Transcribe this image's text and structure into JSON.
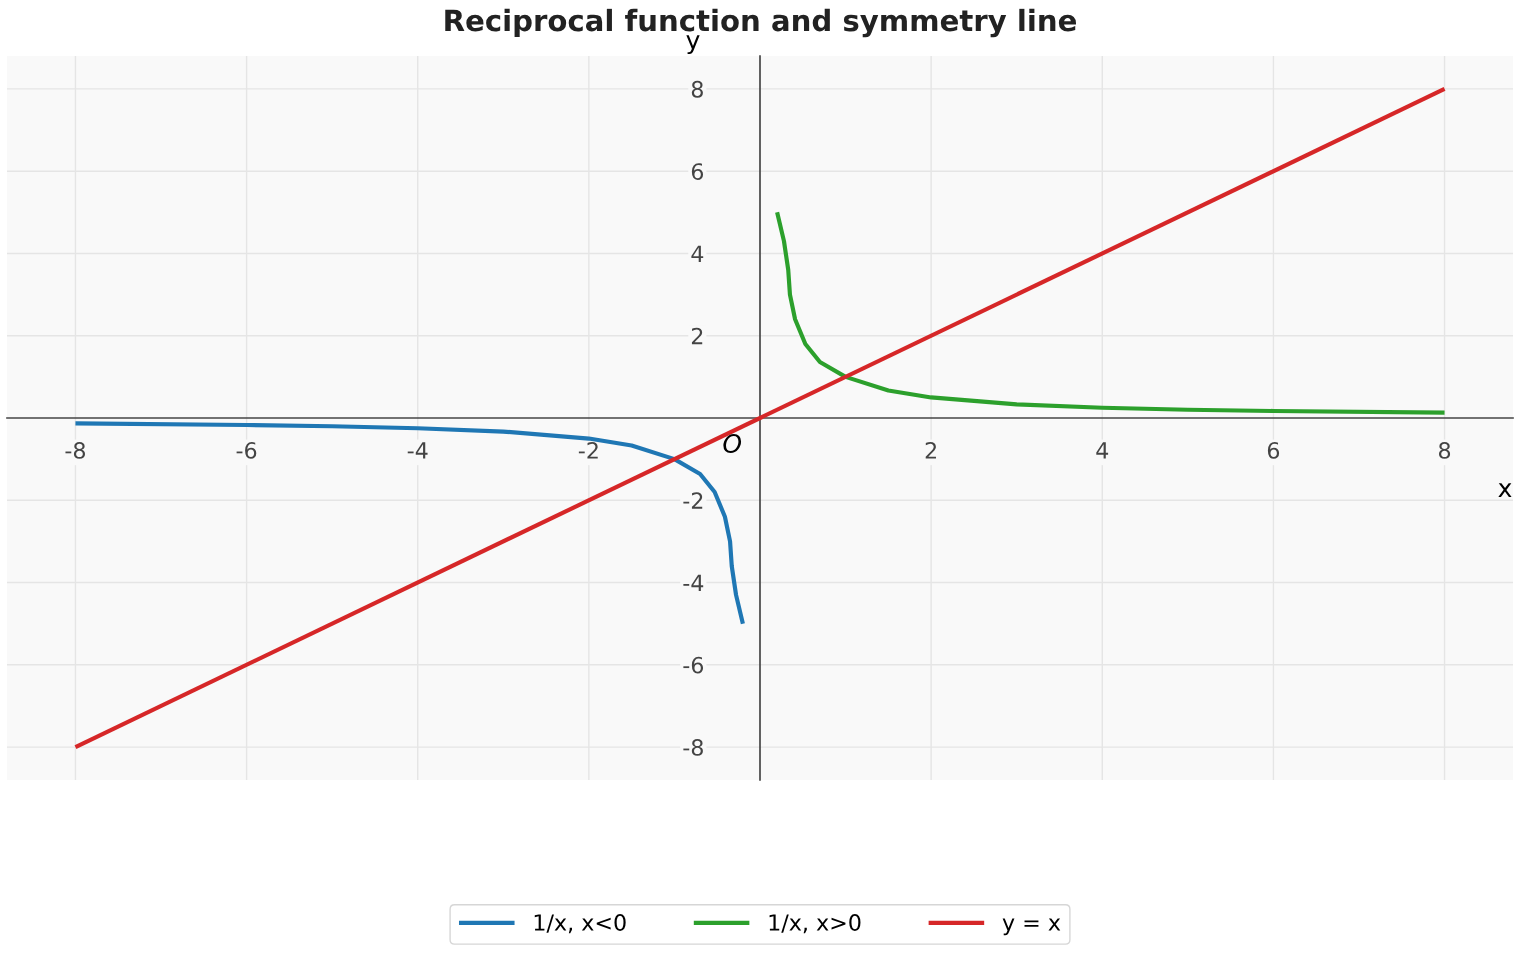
{
  "chart_data": {
    "type": "line",
    "title": "Reciprocal function and symmetry line",
    "xlabel": "x",
    "ylabel": "y",
    "series": [
      {
        "name": "1/x, x<0",
        "color": "#1f77b4",
        "x": [
          -8,
          -6,
          -5,
          -4,
          -3,
          -2,
          -1.5,
          -1,
          -0.7,
          -0.53,
          -0.41,
          -0.35,
          -0.33,
          -0.28,
          -0.2
        ],
        "values": [
          -0.13,
          -0.17,
          -0.2,
          -0.25,
          -0.33,
          -0.5,
          -0.67,
          -1,
          -1.36,
          -1.8,
          -2.4,
          -3.0,
          -3.6,
          -4.3,
          -5
        ]
      },
      {
        "name": "1/x, x>0",
        "color": "#2ca02c",
        "x": [
          0.2,
          0.28,
          0.33,
          0.35,
          0.41,
          0.53,
          0.7,
          1,
          1.5,
          2,
          3,
          4,
          5,
          6,
          8
        ],
        "values": [
          5,
          4.3,
          3.6,
          3.0,
          2.4,
          1.8,
          1.36,
          1,
          0.67,
          0.5,
          0.33,
          0.25,
          0.2,
          0.17,
          0.13
        ]
      },
      {
        "name": "y = x",
        "color": "#d62728",
        "x": [
          -8,
          8
        ],
        "values": [
          -8,
          8
        ]
      }
    ],
    "xlim": [
      -8.8,
      8.8
    ],
    "ylim": [
      -8.8,
      8.8
    ],
    "xticks": [
      -8,
      -6,
      -4,
      -2,
      2,
      4,
      6,
      8
    ],
    "yticks": [
      -8,
      -6,
      -4,
      -2,
      2,
      4,
      6,
      8
    ],
    "annotations": [
      {
        "text": "O",
        "x": 0,
        "y": 0
      }
    ],
    "grid": true,
    "legend": "bottom"
  }
}
